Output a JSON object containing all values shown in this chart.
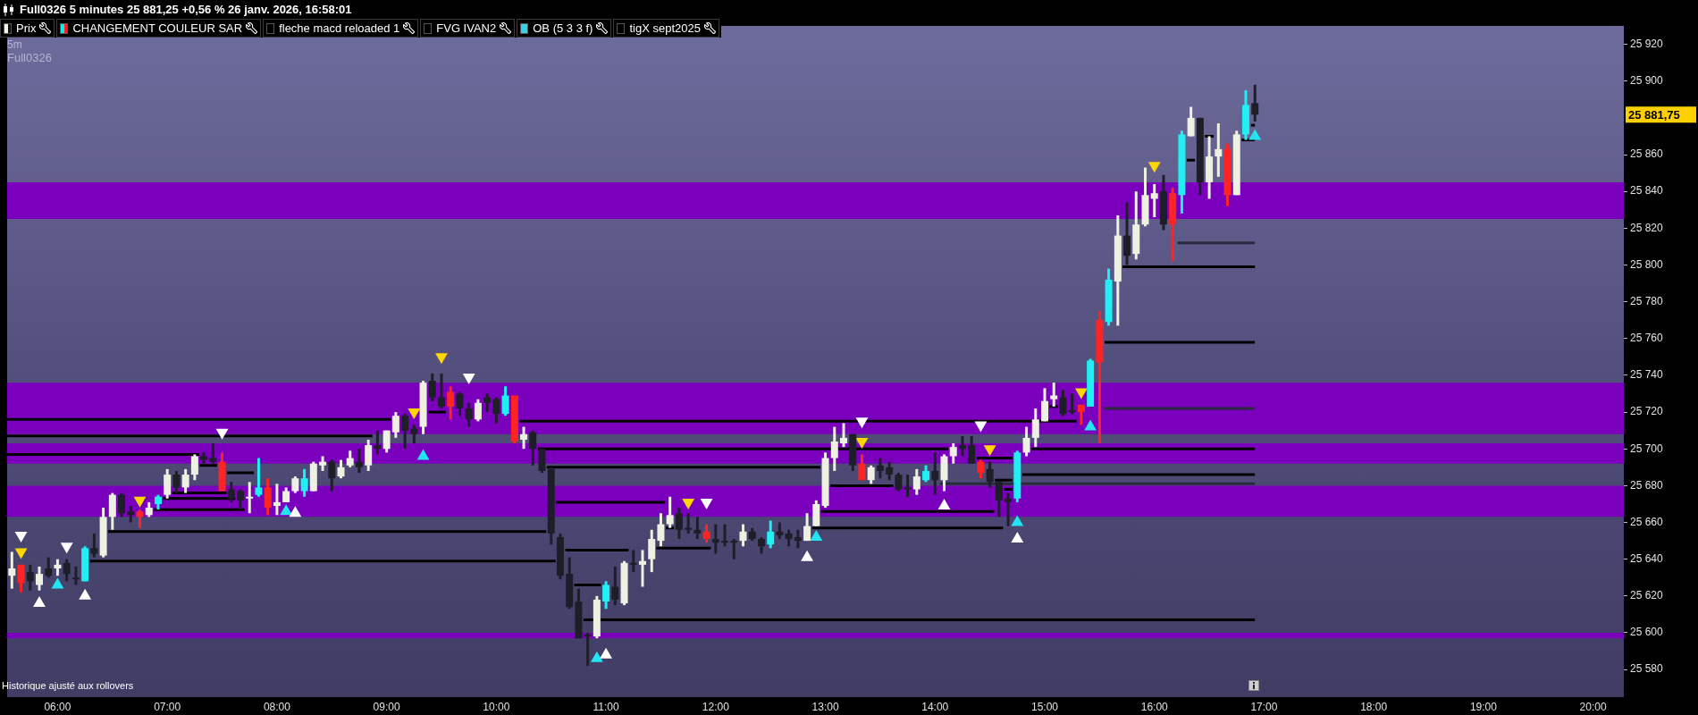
{
  "chart_data": {
    "type": "candlestick",
    "title": "Full0326 5 minutes 25 881,25 +0,56 % 26 janv. 2026, 16:58:01",
    "subtitle": "5m",
    "annotations": [
      "Prix",
      "CHANGEMENT COULEUR SAR",
      "fleche macd reloaded 1",
      "FVG IVAN2",
      "OB (5 3 3 f)",
      "tigX sept2025",
      "Full0326",
      "Historique ajusté aux rollovers",
      "25 881,75"
    ],
    "xlim": [
      5.54,
      20.28
    ],
    "xticks": [
      {
        "value": 6,
        "label": "06:00"
      },
      {
        "value": 7,
        "label": "07:00"
      },
      {
        "value": 8,
        "label": "08:00"
      },
      {
        "value": 9,
        "label": "09:00"
      },
      {
        "value": 10,
        "label": "10:00"
      },
      {
        "value": 11,
        "label": "11:00"
      },
      {
        "value": 12,
        "label": "12:00"
      },
      {
        "value": 13,
        "label": "13:00"
      },
      {
        "value": 14,
        "label": "14:00"
      },
      {
        "value": 15,
        "label": "15:00"
      },
      {
        "value": 16,
        "label": "16:00"
      },
      {
        "value": 17,
        "label": "17:00"
      },
      {
        "value": 18,
        "label": "18:00"
      },
      {
        "value": 19,
        "label": "19:00"
      },
      {
        "value": 20,
        "label": "20:00"
      }
    ],
    "ylim": [
      25565,
      25930
    ],
    "yticks": [
      {
        "value": 25580,
        "label": "25 580"
      },
      {
        "value": 25600,
        "label": "25 600"
      },
      {
        "value": 25620,
        "label": "25 620"
      },
      {
        "value": 25640,
        "label": "25 640"
      },
      {
        "value": 25660,
        "label": "25 660"
      },
      {
        "value": 25680,
        "label": "25 680"
      },
      {
        "value": 25700,
        "label": "25 700"
      },
      {
        "value": 25720,
        "label": "25 720"
      },
      {
        "value": 25740,
        "label": "25 740"
      },
      {
        "value": 25760,
        "label": "25 760"
      },
      {
        "value": 25780,
        "label": "25 780"
      },
      {
        "value": 25800,
        "label": "25 800"
      },
      {
        "value": 25820,
        "label": "25 820"
      },
      {
        "value": 25840,
        "label": "25 840"
      },
      {
        "value": 25860,
        "label": "25 860"
      },
      {
        "value": 25900,
        "label": "25 900"
      },
      {
        "value": 25920,
        "label": "25 920"
      }
    ],
    "x": [
      5.5833,
      5.6667,
      5.75,
      5.8333,
      5.9167,
      6,
      6.0833,
      6.1667,
      6.25,
      6.3333,
      6.4167,
      6.5,
      6.5833,
      6.6667,
      6.75,
      6.8333,
      6.9167,
      7,
      7.0833,
      7.1667,
      7.25,
      7.3333,
      7.4167,
      7.5,
      7.5833,
      7.6667,
      7.75,
      7.8333,
      7.9167,
      8,
      8.0833,
      8.1667,
      8.25,
      8.3333,
      8.4167,
      8.5,
      8.5833,
      8.6667,
      8.75,
      8.8333,
      8.9167,
      9,
      9.0833,
      9.1667,
      9.25,
      9.3333,
      9.4167,
      9.5,
      9.5833,
      9.6667,
      9.75,
      9.8333,
      9.9167,
      10,
      10.0833,
      10.1667,
      10.25,
      10.3333,
      10.4167,
      10.5,
      10.5833,
      10.6667,
      10.75,
      10.8333,
      10.9167,
      11,
      11.0833,
      11.1667,
      11.25,
      11.3333,
      11.4167,
      11.5,
      11.5833,
      11.6667,
      11.75,
      11.8333,
      11.9167,
      12,
      12.0833,
      12.1667,
      12.25,
      12.3333,
      12.4167,
      12.5,
      12.5833,
      12.6667,
      12.75,
      12.8333,
      12.9167,
      13,
      13.0833,
      13.1667,
      13.25,
      13.3333,
      13.4167,
      13.5,
      13.5833,
      13.6667,
      13.75,
      13.8333,
      13.9167,
      14,
      14.0833,
      14.1667,
      14.25,
      14.3333,
      14.4167,
      14.5,
      14.5833,
      14.6667,
      14.75,
      14.8333,
      14.9167,
      15,
      15.0833,
      15.1667,
      15.25,
      15.3333,
      15.4167,
      15.5,
      15.5833,
      15.6667,
      15.75,
      15.8333,
      15.9167,
      16,
      16.0833,
      16.1667,
      16.25,
      16.3333,
      16.4167,
      16.5,
      16.5833,
      16.6667,
      16.75,
      16.8333,
      16.9167
    ],
    "ohlc": [
      [
        25631,
        25644,
        25624,
        25635
      ],
      [
        25637,
        25637,
        25622,
        25627
      ],
      [
        25633,
        25637,
        25623,
        25628
      ],
      [
        25626,
        25636,
        25623,
        25632
      ],
      [
        25635,
        25641,
        25630,
        25631
      ],
      [
        25635,
        25640,
        25631,
        25637
      ],
      [
        25638,
        25640,
        25628,
        25632
      ],
      [
        25630,
        25636,
        25626,
        25629
      ],
      [
        25628,
        25647,
        25628,
        25646
      ],
      [
        25646,
        25654,
        25641,
        25643
      ],
      [
        25642,
        25668,
        25641,
        25663
      ],
      [
        25663,
        25676,
        25656,
        25675
      ],
      [
        25675,
        25676,
        25663,
        25665
      ],
      [
        25666,
        25669,
        25660,
        25664
      ],
      [
        25666,
        25667,
        25657,
        25663
      ],
      [
        25664,
        25671,
        25663,
        25668
      ],
      [
        25670,
        25675,
        25667,
        25674
      ],
      [
        25675,
        25689,
        25673,
        25686
      ],
      [
        25686,
        25688,
        25676,
        25679
      ],
      [
        25679,
        25689,
        25676,
        25686
      ],
      [
        25686,
        25697,
        25683,
        25696
      ],
      [
        25696,
        25698,
        25692,
        25694
      ],
      [
        25695,
        25703,
        25692,
        25693
      ],
      [
        25693,
        25698,
        25677,
        25677
      ],
      [
        25678,
        25682,
        25671,
        25673
      ],
      [
        25677,
        25678,
        25667,
        25672
      ],
      [
        25673,
        25682,
        25665,
        25674
      ],
      [
        25675,
        25695,
        25674,
        25679
      ],
      [
        25679,
        25684,
        25664,
        25668
      ],
      [
        25669,
        25681,
        25664,
        25671
      ],
      [
        25671,
        25679,
        25671,
        25677
      ],
      [
        25677,
        25685,
        25676,
        25684
      ],
      [
        25677,
        25689,
        25674,
        25684
      ],
      [
        25677,
        25693,
        25677,
        25692
      ],
      [
        25691,
        25696,
        25688,
        25693
      ],
      [
        25693,
        25694,
        25677,
        25684
      ],
      [
        25685,
        25694,
        25684,
        25690
      ],
      [
        25691,
        25699,
        25690,
        25695
      ],
      [
        25693,
        25700,
        25687,
        25690
      ],
      [
        25691,
        25705,
        25688,
        25702
      ],
      [
        25702,
        25710,
        25697,
        25700
      ],
      [
        25700,
        25710,
        25698,
        25710
      ],
      [
        25709,
        25720,
        25706,
        25718
      ],
      [
        25718,
        25719,
        25700,
        25710
      ],
      [
        25711,
        25713,
        25703,
        25708
      ],
      [
        25712,
        25737,
        25708,
        25736
      ],
      [
        25737,
        25741,
        25726,
        25728
      ],
      [
        25728,
        25741,
        25722,
        25723
      ],
      [
        25731,
        25734,
        25716,
        25723
      ],
      [
        25730,
        25731,
        25718,
        25722
      ],
      [
        25722,
        25725,
        25712,
        25716
      ],
      [
        25716,
        25727,
        25715,
        25725
      ],
      [
        25728,
        25730,
        25720,
        25725
      ],
      [
        25727,
        25728,
        25714,
        25719
      ],
      [
        25719,
        25734,
        25718,
        25729
      ],
      [
        25729,
        25729,
        25703,
        25704
      ],
      [
        25705,
        25712,
        25700,
        25708
      ],
      [
        25709,
        25710,
        25691,
        25700
      ],
      [
        25700,
        25700,
        25687,
        25688
      ],
      [
        25689,
        25690,
        25648,
        25654
      ],
      [
        25652,
        25654,
        25629,
        25631
      ],
      [
        25632,
        25641,
        25613,
        25614
      ],
      [
        25617,
        25624,
        25597,
        25597
      ],
      [
        25599,
        25600,
        25582,
        25598
      ],
      [
        25598,
        25620,
        25597,
        25618
      ],
      [
        25617,
        25628,
        25613,
        25626
      ],
      [
        25625,
        25636,
        25615,
        25618
      ],
      [
        25616,
        25639,
        25615,
        25638
      ],
      [
        25638,
        25645,
        25633,
        25637
      ],
      [
        25637,
        25645,
        25625,
        25639
      ],
      [
        25640,
        25656,
        25633,
        25651
      ],
      [
        25650,
        25665,
        25647,
        25659
      ],
      [
        25659,
        25674,
        25657,
        25664
      ],
      [
        25665,
        25668,
        25651,
        25656
      ],
      [
        25657,
        25665,
        25654,
        25656
      ],
      [
        25656,
        25663,
        25651,
        25654
      ],
      [
        25655,
        25659,
        25649,
        25651
      ],
      [
        25651,
        25659,
        25643,
        25649
      ],
      [
        25650,
        25659,
        25647,
        25649
      ],
      [
        25650,
        25651,
        25640,
        25649
      ],
      [
        25650,
        25659,
        25647,
        25655
      ],
      [
        25655,
        25657,
        25650,
        25651
      ],
      [
        25651,
        25652,
        25643,
        25647
      ],
      [
        25648,
        25661,
        25646,
        25655
      ],
      [
        25655,
        25660,
        25651,
        25653
      ],
      [
        25654,
        25656,
        25647,
        25651
      ],
      [
        25652,
        25656,
        25646,
        25650
      ],
      [
        25650,
        25665,
        25650,
        25658
      ],
      [
        25658,
        25672,
        25658,
        25670
      ],
      [
        25669,
        25698,
        25668,
        25695
      ],
      [
        25695,
        25712,
        25688,
        25704
      ],
      [
        25703,
        25714,
        25701,
        25706
      ],
      [
        25708,
        25708,
        25688,
        25691
      ],
      [
        25692,
        25697,
        25683,
        25683
      ],
      [
        25683,
        25691,
        25681,
        25690
      ],
      [
        25691,
        25695,
        25684,
        25688
      ],
      [
        25690,
        25693,
        25683,
        25686
      ],
      [
        25686,
        25687,
        25677,
        25678
      ],
      [
        25679,
        25686,
        25674,
        25678
      ],
      [
        25678,
        25689,
        25675,
        25685
      ],
      [
        25683,
        25691,
        25682,
        25688
      ],
      [
        25688,
        25698,
        25675,
        25683
      ],
      [
        25683,
        25697,
        25677,
        25696
      ],
      [
        25696,
        25703,
        25692,
        25701
      ],
      [
        25702,
        25707,
        25696,
        25700
      ],
      [
        25702,
        25707,
        25692,
        25692
      ],
      [
        25693,
        25694,
        25684,
        25687
      ],
      [
        25689,
        25693,
        25679,
        25682
      ],
      [
        25682,
        25682,
        25663,
        25672
      ],
      [
        25673,
        25676,
        25658,
        25671
      ],
      [
        25673,
        25699,
        25671,
        25698
      ],
      [
        25698,
        25712,
        25696,
        25706
      ],
      [
        25706,
        25722,
        25701,
        25716
      ],
      [
        25715,
        25733,
        25715,
        25726
      ],
      [
        25727,
        25736,
        25723,
        25729
      ],
      [
        25728,
        25732,
        25718,
        25719
      ],
      [
        25721,
        25730,
        25719,
        25720
      ],
      [
        25724,
        25724,
        25713,
        25720
      ],
      [
        25723,
        25749,
        25723,
        25748
      ],
      [
        25770,
        25775,
        25703,
        25747
      ],
      [
        25769,
        25798,
        25767,
        25792
      ],
      [
        25791,
        25827,
        25767,
        25816
      ],
      [
        25816,
        25834,
        25800,
        25805
      ],
      [
        25806,
        25840,
        25803,
        25822
      ],
      [
        25822,
        25853,
        25821,
        25838
      ],
      [
        25836,
        25844,
        25826,
        25839
      ],
      [
        25840,
        25849,
        25819,
        25822
      ],
      [
        25839,
        25842,
        25802,
        25822
      ],
      [
        25838,
        25873,
        25828,
        25871
      ],
      [
        25870,
        25886,
        25870,
        25880
      ],
      [
        25880,
        25880,
        25838,
        25845
      ],
      [
        25845,
        25870,
        25836,
        25859
      ],
      [
        25859,
        25877,
        25848,
        25863
      ],
      [
        25863,
        25866,
        25832,
        25838
      ],
      [
        25838,
        25873,
        25838,
        25871
      ],
      [
        25871,
        25895,
        25868,
        25887
      ],
      [
        25888,
        25898,
        25878,
        25881.75
      ]
    ],
    "colors": [
      "#eef0e2",
      "#ff2424",
      "#1e1e28",
      "#eef0e2",
      "#1e1e28",
      "#eef0e2",
      "#1e1e28",
      "#1e1e28",
      "#20f0f4",
      "#1e1e28",
      "#eef0e2",
      "#eef0e2",
      "#1e1e28",
      "#1e1e28",
      "#ff2424",
      "#eef0e2",
      "#20f0f4",
      "#eef0e2",
      "#1e1e28",
      "#eef0e2",
      "#eef0e2",
      "#1e1e28",
      "#1e1e28",
      "#ff2424",
      "#1e1e28",
      "#1e1e28",
      "#eef0e2",
      "#20f0f4",
      "#ff2424",
      "#eef0e2",
      "#eef0e2",
      "#eef0e2",
      "#20f0f4",
      "#eef0e2",
      "#eef0e2",
      "#1e1e28",
      "#eef0e2",
      "#eef0e2",
      "#1e1e28",
      "#eef0e2",
      "#1e1e28",
      "#eef0e2",
      "#eef0e2",
      "#1e1e28",
      "#1e1e28",
      "#eef0e2",
      "#1e1e28",
      "#1e1e28",
      "#ff2424",
      "#1e1e28",
      "#1e1e28",
      "#eef0e2",
      "#1e1e28",
      "#1e1e28",
      "#20f0f4",
      "#ff2424",
      "#eef0e2",
      "#1e1e28",
      "#1e1e28",
      "#1e1e28",
      "#1e1e28",
      "#1e1e28",
      "#1e1e28",
      "#1e1e28",
      "#eef0e2",
      "#20f0f4",
      "#1e1e28",
      "#eef0e2",
      "#1e1e28",
      "#eef0e2",
      "#eef0e2",
      "#eef0e2",
      "#eef0e2",
      "#1e1e28",
      "#1e1e28",
      "#1e1e28",
      "#ff2424",
      "#1e1e28",
      "#1e1e28",
      "#1e1e28",
      "#eef0e2",
      "#1e1e28",
      "#1e1e28",
      "#20f0f4",
      "#1e1e28",
      "#1e1e28",
      "#1e1e28",
      "#eef0e2",
      "#eef0e2",
      "#eef0e2",
      "#eef0e2",
      "#eef0e2",
      "#1e1e28",
      "#ff2424",
      "#eef0e2",
      "#1e1e28",
      "#1e1e28",
      "#1e1e28",
      "#1e1e28",
      "#eef0e2",
      "#20f0f4",
      "#1e1e28",
      "#eef0e2",
      "#eef0e2",
      "#1e1e28",
      "#1e1e28",
      "#ff2424",
      "#1e1e28",
      "#1e1e28",
      "#1e1e28",
      "#20f0f4",
      "#eef0e2",
      "#eef0e2",
      "#eef0e2",
      "#eef0e2",
      "#1e1e28",
      "#1e1e28",
      "#ff2424",
      "#20f0f4",
      "#ff2424",
      "#20f0f4",
      "#eef0e2",
      "#1e1e28",
      "#eef0e2",
      "#eef0e2",
      "#eef0e2",
      "#1e1e28",
      "#ff2424",
      "#20f0f4",
      "#eef0e2",
      "#1e1e28",
      "#eef0e2",
      "#eef0e2",
      "#ff2424",
      "#eef0e2",
      "#20f0f4",
      "#1e1e28"
    ],
    "bands": [
      {
        "axis": "y",
        "from": 25825,
        "to": 25845,
        "color": "#7a00be"
      },
      {
        "axis": "y",
        "from": 25708,
        "to": 25736,
        "color": "#7a00be"
      },
      {
        "axis": "y",
        "from": 25692,
        "to": 25703,
        "color": "#7a00be"
      },
      {
        "axis": "y",
        "from": 25663,
        "to": 25680,
        "color": "#7a00be"
      },
      {
        "axis": "y",
        "from": 25597,
        "to": 25600,
        "color": "#7a00be"
      }
    ],
    "series": [
      {
        "type": "scatter",
        "marker": "triangle",
        "color": "#ffffff",
        "x": [
          5.6667,
          5.8333,
          6.0833,
          6.25,
          7.5,
          8.1667,
          9.75,
          11,
          11.9167,
          12.8333,
          13.3333,
          14.0833,
          14.4167,
          14.75
        ],
        "values": [
          25653,
          25616,
          25647,
          25620,
          25709,
          25665,
          25739,
          25588,
          25671,
          25641,
          25715,
          25669,
          25713,
          25651
        ]
      },
      {
        "type": "scatter",
        "marker": "triangle",
        "color": "#ffd700",
        "x": [
          5.6667,
          6.75,
          9.25,
          9.5,
          11.75,
          13.3333,
          14.5,
          15.3333,
          16
        ],
        "values": [
          25644,
          25672,
          25720,
          25750,
          25671,
          25704,
          25700,
          25731,
          25854
        ]
      },
      {
        "type": "scatter",
        "marker": "triangle",
        "color": "#22e4f2",
        "x": [
          6,
          8.0833,
          9.3333,
          10.9167,
          12.9167,
          14.75,
          15.4167,
          16.9167
        ],
        "values": [
          25626,
          25666,
          25696,
          25586,
          25652,
          25660,
          25712,
          25870
        ]
      },
      {
        "type": "line",
        "marker": "none",
        "color": "#000000",
        "x": [
          5.54,
          9.04
        ],
        "values": [
          25716,
          25716
        ]
      },
      {
        "type": "line",
        "marker": "none",
        "color": "#000000",
        "x": [
          5.54,
          8.87
        ],
        "values": [
          25707,
          25707
        ]
      },
      {
        "type": "line",
        "marker": "none",
        "color": "#000000",
        "x": [
          5.54,
          7.29
        ],
        "values": [
          25697,
          25697
        ]
      },
      {
        "type": "line",
        "marker": "none",
        "color": "#000000",
        "x": [
          7.295,
          7.455
        ],
        "values": [
          25691,
          25691
        ]
      },
      {
        "type": "line",
        "marker": "none",
        "color": "#000000",
        "x": [
          7.545,
          7.79
        ],
        "values": [
          25687,
          25687
        ]
      },
      {
        "type": "line",
        "marker": "none",
        "color": "#000000",
        "x": [
          7.045,
          7.54
        ],
        "values": [
          25676,
          25676
        ]
      },
      {
        "type": "line",
        "marker": "none",
        "color": "#000000",
        "x": [
          6.96,
          7.62
        ],
        "values": [
          25673,
          25673
        ]
      },
      {
        "type": "line",
        "marker": "none",
        "color": "#000000",
        "x": [
          6.88,
          7.705
        ],
        "values": [
          25667,
          25667
        ]
      },
      {
        "type": "line",
        "marker": "none",
        "color": "#000000",
        "x": [
          6.46,
          10.455
        ],
        "values": [
          25655,
          25655
        ]
      },
      {
        "type": "line",
        "marker": "none",
        "color": "#000000",
        "x": [
          6.295,
          10.54
        ],
        "values": [
          25639,
          25639
        ]
      },
      {
        "type": "line",
        "marker": "none",
        "color": "#000000",
        "x": [
          9.38,
          9.54
        ],
        "values": [
          25720,
          25720
        ]
      },
      {
        "type": "line",
        "marker": "none",
        "color": "#000000",
        "x": [
          10.21,
          15.29
        ],
        "values": [
          25715,
          25715
        ]
      },
      {
        "type": "line",
        "marker": "none",
        "color": "#000000",
        "x": [
          15.045,
          15.12
        ],
        "values": [
          25723,
          25723
        ]
      },
      {
        "type": "line",
        "marker": "none",
        "color": "#000000",
        "x": [
          10.38,
          14.12
        ],
        "values": [
          25700,
          25700
        ]
      },
      {
        "type": "line",
        "marker": "none",
        "color": "#000000",
        "x": [
          14.88,
          16.9167
        ],
        "values": [
          25700,
          25700
        ]
      },
      {
        "type": "line",
        "marker": "none",
        "color": "#000000",
        "x": [
          14.38,
          14.705
        ],
        "values": [
          25695,
          25695
        ]
      },
      {
        "type": "line",
        "marker": "none",
        "color": "#000000",
        "x": [
          10.46,
          12.955
        ],
        "values": [
          25690,
          25690
        ]
      },
      {
        "type": "line",
        "marker": "none",
        "color": "#000000",
        "x": [
          14.795,
          16.9167
        ],
        "values": [
          25686,
          25686
        ]
      },
      {
        "type": "line",
        "marker": "none",
        "color": "#000000",
        "x": [
          14.545,
          14.705
        ],
        "values": [
          25683,
          25683
        ]
      },
      {
        "type": "line",
        "marker": "none",
        "color": "#000000",
        "x": [
          13.045,
          13.62
        ],
        "values": [
          25680,
          25680
        ]
      },
      {
        "type": "line",
        "marker": "none",
        "color": "#000000",
        "x": [
          14.63,
          14.705
        ],
        "values": [
          25678,
          25678
        ]
      },
      {
        "type": "line",
        "marker": "none",
        "color": "#000000",
        "x": [
          12.96,
          14.54
        ],
        "values": [
          25666,
          25666
        ]
      },
      {
        "type": "line",
        "marker": "none",
        "color": "#000000",
        "x": [
          12.88,
          14.62
        ],
        "values": [
          25657,
          25657
        ]
      },
      {
        "type": "line",
        "marker": "none",
        "color": "#000000",
        "x": [
          10.545,
          11.54
        ],
        "values": [
          25671,
          25671
        ]
      },
      {
        "type": "line",
        "marker": "none",
        "color": "#000000",
        "x": [
          10.63,
          11.205
        ],
        "values": [
          25645,
          25645
        ]
      },
      {
        "type": "line",
        "marker": "none",
        "color": "#000000",
        "x": [
          11.545,
          11.62
        ],
        "values": [
          25657,
          25657
        ]
      },
      {
        "type": "line",
        "marker": "none",
        "color": "#000000",
        "x": [
          11.46,
          11.955
        ],
        "values": [
          25646,
          25646
        ]
      },
      {
        "type": "line",
        "marker": "none",
        "color": "#000000",
        "x": [
          10.71,
          10.955
        ],
        "values": [
          25626,
          25626
        ]
      },
      {
        "type": "line",
        "marker": "none",
        "color": "#000000",
        "x": [
          10.795,
          16.9167
        ],
        "values": [
          25607,
          25607
        ]
      },
      {
        "type": "line",
        "marker": "none",
        "color": "#000000",
        "x": [
          15.71,
          16.9167
        ],
        "values": [
          25799,
          25799
        ]
      },
      {
        "type": "line",
        "marker": "none",
        "color": "#000000",
        "x": [
          15.545,
          16.9167
        ],
        "values": [
          25758,
          25758
        ]
      },
      {
        "type": "line",
        "marker": "none",
        "color": "#000000",
        "x": [
          16.295,
          16.37
        ],
        "values": [
          25857,
          25857
        ]
      },
      {
        "type": "line",
        "marker": "none",
        "color": "#000000",
        "x": [
          16.46,
          16.54
        ],
        "values": [
          25870,
          25870
        ]
      },
      {
        "type": "line",
        "marker": "none",
        "color": "#000000",
        "x": [
          16.88,
          16.9167
        ],
        "values": [
          25876,
          25876
        ]
      },
      {
        "type": "line",
        "marker": "none",
        "color": "#000000",
        "x": [
          16.795,
          16.9167
        ],
        "values": [
          25868,
          25868
        ]
      },
      {
        "type": "line",
        "marker": "none",
        "color": "#2a2a3c",
        "x": [
          16.21,
          16.9167
        ],
        "values": [
          25812,
          25812
        ]
      },
      {
        "type": "line",
        "marker": "none",
        "color": "#2a2a3c",
        "x": [
          15.545,
          16.9167
        ],
        "values": [
          25722,
          25722
        ]
      },
      {
        "type": "line",
        "marker": "none",
        "color": "#2a2a3c",
        "x": [
          14.045,
          16.9167
        ],
        "values": [
          25681,
          25681
        ]
      }
    ]
  }
}
